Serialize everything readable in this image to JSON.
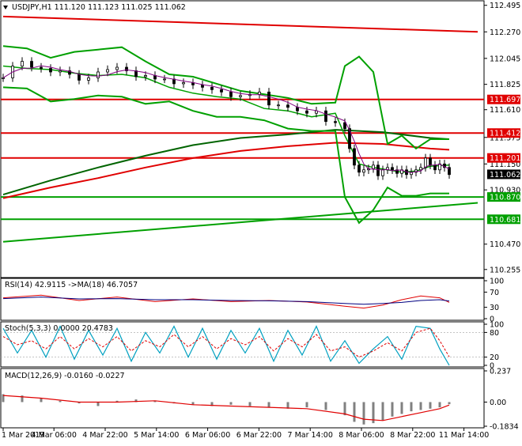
{
  "header": {
    "symbol": "USDJPY,H1",
    "ohlc": "111.120 111.123 111.025 111.062"
  },
  "colors": {
    "red": "#e00000",
    "green": "#00a000",
    "dark_green": "#006400",
    "navy": "#000080",
    "teal": "#00a0c0",
    "price_label_bg": "#000000"
  },
  "chart_data": [
    {
      "type": "line",
      "panel": "price",
      "title": "USDJPY,H1 111.120 111.123 111.025 111.062",
      "ylim": [
        110.2,
        112.52
      ],
      "y_ticks": [
        "112.495",
        "112.270",
        "112.045",
        "111.825",
        "111.610",
        "111.375",
        "111.150",
        "110.930",
        "110.470",
        "110.255"
      ],
      "horizontal_levels": [
        {
          "label": "111.697",
          "value": 111.697,
          "color": "red"
        },
        {
          "label": "111.412",
          "value": 111.412,
          "color": "red"
        },
        {
          "label": "111.201",
          "value": 111.201,
          "color": "red"
        },
        {
          "label": "110.870",
          "value": 110.87,
          "color": "green"
        },
        {
          "label": "110.681",
          "value": 110.681,
          "color": "green"
        }
      ],
      "current_price": {
        "label": "111.062",
        "value": 111.062
      },
      "trendlines": [
        {
          "name": "upper-red-trendline",
          "from": [
            0,
            112.4
          ],
          "to": [
            100,
            112.27
          ],
          "color": "red"
        },
        {
          "name": "lower-green-trendline",
          "from": [
            0,
            110.49
          ],
          "to": [
            100,
            110.82
          ],
          "color": "green"
        }
      ],
      "series": [
        {
          "key": "ma_red_long",
          "color": "red",
          "x": [
            0,
            10,
            20,
            30,
            40,
            50,
            60,
            70,
            80,
            90,
            94
          ],
          "values": [
            110.86,
            110.95,
            111.03,
            111.12,
            111.2,
            111.26,
            111.3,
            111.33,
            111.32,
            111.28,
            111.27
          ]
        },
        {
          "key": "ma_green_long",
          "color": "dark_green",
          "x": [
            0,
            10,
            20,
            30,
            40,
            50,
            60,
            70,
            80,
            90,
            94
          ],
          "values": [
            110.89,
            111.01,
            111.12,
            111.22,
            111.31,
            111.37,
            111.4,
            111.44,
            111.42,
            111.37,
            111.36
          ]
        },
        {
          "key": "bb_upper",
          "color": "green",
          "x": [
            0,
            5,
            10,
            15,
            20,
            25,
            30,
            35,
            40,
            45,
            50,
            55,
            60,
            65,
            70,
            72,
            75,
            78,
            81,
            84,
            87,
            90,
            94
          ],
          "values": [
            112.15,
            112.13,
            112.05,
            112.1,
            112.12,
            112.14,
            112.02,
            111.91,
            111.89,
            111.83,
            111.77,
            111.74,
            111.71,
            111.66,
            111.67,
            111.98,
            112.06,
            111.93,
            111.32,
            111.39,
            111.28,
            111.36,
            111.36
          ]
        },
        {
          "key": "bb_middle",
          "color": "green",
          "x": [
            0,
            5,
            10,
            15,
            20,
            25,
            30,
            35,
            40,
            45,
            50,
            55,
            60,
            65,
            70,
            72,
            75,
            78,
            81,
            84,
            87,
            90,
            94
          ],
          "values": [
            111.98,
            111.96,
            111.95,
            111.92,
            111.9,
            111.91,
            111.88,
            111.8,
            111.75,
            111.72,
            111.7,
            111.62,
            111.6,
            111.55,
            111.58,
            111.39,
            111.15,
            111.12,
            111.1,
            111.08,
            111.09,
            111.13,
            111.14
          ]
        },
        {
          "key": "bb_lower",
          "color": "green",
          "x": [
            0,
            5,
            10,
            15,
            20,
            25,
            30,
            35,
            40,
            45,
            50,
            55,
            60,
            65,
            70,
            72,
            75,
            78,
            81,
            84,
            87,
            90,
            94
          ],
          "values": [
            111.8,
            111.79,
            111.68,
            111.7,
            111.73,
            111.72,
            111.66,
            111.68,
            111.6,
            111.55,
            111.55,
            111.52,
            111.45,
            111.43,
            111.43,
            110.87,
            110.65,
            110.76,
            110.95,
            110.88,
            110.88,
            110.9,
            110.9
          ]
        }
      ],
      "price_path": {
        "x": [
          0,
          2,
          4,
          6,
          8,
          10,
          12,
          14,
          16,
          18,
          20,
          22,
          24,
          26,
          28,
          30,
          32,
          34,
          36,
          38,
          40,
          42,
          44,
          46,
          48,
          50,
          52,
          54,
          56,
          58,
          60,
          62,
          64,
          66,
          68,
          70,
          72,
          73,
          74,
          75,
          76,
          77,
          78,
          79,
          80,
          81,
          82,
          83,
          84,
          85,
          86,
          87,
          88,
          89,
          90,
          91,
          92,
          93,
          94
        ],
        "values": [
          111.88,
          111.98,
          112.02,
          111.97,
          111.96,
          111.93,
          111.94,
          111.91,
          111.86,
          111.88,
          111.93,
          111.95,
          111.97,
          111.94,
          111.89,
          111.9,
          111.87,
          111.87,
          111.83,
          111.84,
          111.82,
          111.8,
          111.78,
          111.76,
          111.72,
          111.73,
          111.74,
          111.76,
          111.65,
          111.65,
          111.63,
          111.6,
          111.58,
          111.6,
          111.51,
          111.5,
          111.45,
          111.28,
          111.14,
          111.08,
          111.1,
          111.11,
          111.14,
          111.05,
          111.1,
          111.12,
          111.1,
          111.07,
          111.1,
          111.06,
          111.08,
          111.1,
          111.12,
          111.2,
          111.14,
          111.1,
          111.15,
          111.12,
          111.06
        ]
      }
    },
    {
      "type": "line",
      "panel": "rsi",
      "title": "RSI(14) 42.9115 ->MA(18) 46.7057",
      "ylim": [
        0,
        100
      ],
      "y_ticks": [
        "100",
        "70",
        "30",
        "0"
      ],
      "series": [
        {
          "key": "rsi",
          "color": "red",
          "x": [
            0,
            8,
            16,
            24,
            32,
            40,
            48,
            56,
            64,
            72,
            76,
            80,
            84,
            88,
            92,
            94
          ],
          "values": [
            55,
            62,
            48,
            57,
            45,
            52,
            45,
            48,
            44,
            33,
            28,
            36,
            50,
            60,
            55,
            42.9
          ]
        },
        {
          "key": "rsi_ma",
          "color": "navy",
          "x": [
            0,
            8,
            16,
            24,
            32,
            40,
            48,
            56,
            64,
            72,
            76,
            80,
            84,
            88,
            92,
            94
          ],
          "values": [
            53,
            57,
            52,
            53,
            50,
            50,
            48,
            47,
            45,
            40,
            38,
            40,
            43,
            48,
            50,
            46.7
          ]
        }
      ]
    },
    {
      "type": "line",
      "panel": "stochastic",
      "title": "Stoch(5,3,3) 0.0000 20.4783",
      "ylim": [
        0,
        100
      ],
      "y_ticks": [
        "100",
        "80",
        "20",
        "0"
      ],
      "series": [
        {
          "key": "stoch_k",
          "color": "teal",
          "x": [
            0,
            3,
            6,
            9,
            12,
            15,
            18,
            21,
            24,
            27,
            30,
            33,
            36,
            39,
            42,
            45,
            48,
            51,
            54,
            57,
            60,
            63,
            66,
            69,
            72,
            75,
            78,
            81,
            84,
            87,
            90,
            92,
            94
          ],
          "values": [
            90,
            30,
            85,
            20,
            95,
            15,
            85,
            25,
            90,
            10,
            80,
            30,
            95,
            20,
            90,
            15,
            85,
            30,
            90,
            10,
            85,
            25,
            95,
            10,
            60,
            5,
            40,
            70,
            15,
            95,
            90,
            40,
            0
          ]
        },
        {
          "key": "stoch_d",
          "color": "red",
          "x": [
            0,
            3,
            6,
            9,
            12,
            15,
            18,
            21,
            24,
            27,
            30,
            33,
            36,
            39,
            42,
            45,
            48,
            51,
            54,
            57,
            60,
            63,
            66,
            69,
            72,
            75,
            78,
            81,
            84,
            87,
            90,
            92,
            94
          ],
          "values": [
            70,
            50,
            60,
            40,
            70,
            40,
            65,
            45,
            70,
            35,
            60,
            45,
            75,
            45,
            70,
            40,
            65,
            50,
            70,
            35,
            65,
            45,
            75,
            35,
            45,
            20,
            35,
            55,
            35,
            80,
            90,
            60,
            20.5
          ]
        }
      ]
    },
    {
      "type": "bar",
      "panel": "macd",
      "title": "MACD(12,26,9) -0.0160 -0.0227",
      "ylim": [
        -0.1834,
        0.237
      ],
      "y_ticks": [
        "0.237",
        "0.00",
        "-0.1834"
      ],
      "series": [
        {
          "key": "macd_histogram",
          "color": "#000000",
          "x": [
            0,
            4,
            8,
            12,
            16,
            20,
            24,
            28,
            32,
            36,
            40,
            44,
            48,
            52,
            56,
            60,
            64,
            68,
            72,
            74,
            76,
            78,
            80,
            82,
            84,
            86,
            88,
            90,
            92,
            94
          ],
          "values": [
            0.06,
            0.05,
            0.03,
            0.01,
            -0.01,
            -0.03,
            0.01,
            0.02,
            0.01,
            -0.01,
            -0.02,
            -0.03,
            -0.02,
            -0.03,
            -0.04,
            -0.05,
            -0.04,
            -0.06,
            -0.1,
            -0.15,
            -0.17,
            -0.16,
            -0.14,
            -0.11,
            -0.09,
            -0.07,
            -0.06,
            -0.05,
            -0.04,
            -0.016
          ]
        },
        {
          "key": "macd_signal",
          "color": "red",
          "x": [
            0,
            8,
            16,
            24,
            32,
            40,
            48,
            56,
            64,
            72,
            76,
            80,
            84,
            88,
            92,
            94
          ],
          "values": [
            0.05,
            0.03,
            0.0,
            0.0,
            0.01,
            -0.02,
            -0.03,
            -0.04,
            -0.05,
            -0.09,
            -0.13,
            -0.14,
            -0.11,
            -0.08,
            -0.05,
            -0.0227
          ]
        }
      ]
    }
  ],
  "time_axis": {
    "xlim": [
      0,
      100
    ],
    "labels": [
      {
        "text": "1 Mar 2019",
        "x": 0
      },
      {
        "text": "4 Mar 06:00",
        "x": 10.7
      },
      {
        "text": "4 Mar 22:00",
        "x": 21.5
      },
      {
        "text": "5 Mar 14:00",
        "x": 32.3
      },
      {
        "text": "6 Mar 06:00",
        "x": 43.1
      },
      {
        "text": "6 Mar 22:00",
        "x": 53.9
      },
      {
        "text": "7 Mar 14:00",
        "x": 64.7
      },
      {
        "text": "8 Mar 06:00",
        "x": 75.5
      },
      {
        "text": "8 Mar 22:00",
        "x": 86.3
      },
      {
        "text": "11 Mar 14:00",
        "x": 97.1
      }
    ]
  }
}
